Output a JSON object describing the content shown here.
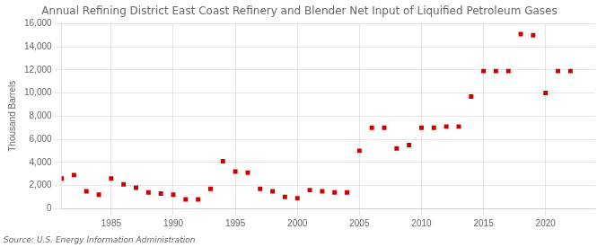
{
  "chart_data": {
    "type": "scatter",
    "title": "Annual Refining District East Coast Refinery and Blender Net Input of Liquified Petroleum Gases",
    "y_label": "Thousand Barrels",
    "annotations": [
      "Source: U.S. Energy Information Administration"
    ],
    "color": "#cc0000",
    "marker": "square",
    "grid": true,
    "xlim": [
      1981,
      2024
    ],
    "ylim": [
      0,
      16000
    ],
    "xticks": [
      1985,
      1990,
      1995,
      2000,
      2005,
      2010,
      2015,
      2020
    ],
    "yticks": [
      0,
      {
        "value": 2000,
        "label": "2,000"
      },
      {
        "value": 4000,
        "label": "4,000"
      },
      {
        "value": 6000,
        "label": "6,000"
      },
      {
        "value": 8000,
        "label": "8,000"
      },
      {
        "value": 10000,
        "label": "10,000"
      },
      {
        "value": 12000,
        "label": "12,000"
      },
      {
        "value": 14000,
        "label": "14,000"
      },
      {
        "value": 16000,
        "label": "16,000"
      }
    ],
    "x": [
      1981,
      1982,
      1983,
      1984,
      1985,
      1986,
      1987,
      1988,
      1989,
      1990,
      1991,
      1992,
      1993,
      1994,
      1995,
      1996,
      1997,
      1998,
      1999,
      2000,
      2001,
      2002,
      2003,
      2004,
      2005,
      2006,
      2007,
      2008,
      2009,
      2010,
      2011,
      2012,
      2013,
      2014,
      2015,
      2016,
      2017,
      2018,
      2019,
      2020,
      2021,
      2022
    ],
    "values": [
      2600,
      2900,
      1500,
      1200,
      2600,
      2100,
      1800,
      1400,
      1300,
      1200,
      800,
      800,
      1700,
      4100,
      3200,
      3100,
      1700,
      1500,
      1000,
      900,
      1600,
      1500,
      1400,
      1400,
      5000,
      7000,
      7000,
      5200,
      5500,
      7000,
      7000,
      7100,
      7100,
      9700,
      11900,
      11900,
      11900,
      15100,
      15000,
      10000,
      11900,
      11900
    ]
  }
}
